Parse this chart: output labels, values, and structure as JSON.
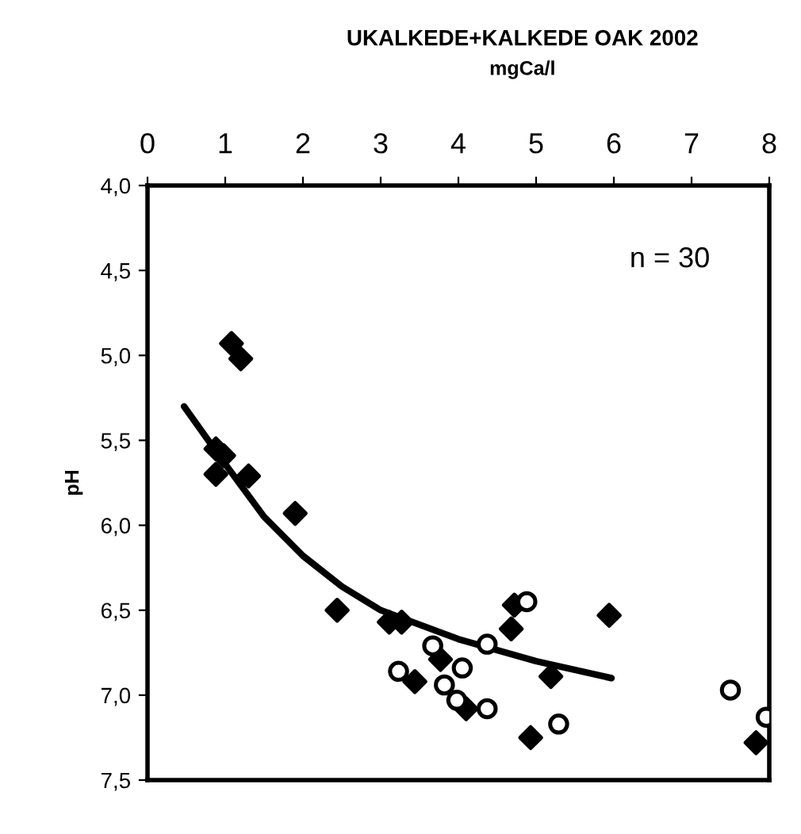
{
  "chart_data": {
    "type": "scatter",
    "title": "UKALKEDE+KALKEDE OAK 2002",
    "xlabel": "mgCa/l",
    "ylabel": "pH",
    "xlim": [
      0,
      8
    ],
    "xticks": [
      0,
      1,
      2,
      3,
      4,
      5,
      6,
      7,
      8
    ],
    "ylim": [
      7.5,
      4.0
    ],
    "yticks": [
      {
        "value": 4.0,
        "label": "4,0"
      },
      {
        "value": 4.5,
        "label": "4,5"
      },
      {
        "value": 5.0,
        "label": "5,0"
      },
      {
        "value": 5.5,
        "label": "5,5"
      },
      {
        "value": 6.0,
        "label": "6,0"
      },
      {
        "value": 6.5,
        "label": "6,5"
      },
      {
        "value": 7.0,
        "label": "7,0"
      },
      {
        "value": 7.5,
        "label": "7,5"
      }
    ],
    "grid": false,
    "legend": false,
    "annotations": [
      "n = 30"
    ],
    "series": [
      {
        "marker": "diamond",
        "color": "#000000",
        "x": [
          1.08,
          1.2,
          0.88,
          0.98,
          0.88,
          1.3,
          1.9,
          2.44,
          3.11,
          3.27,
          3.44,
          3.77,
          4.1,
          4.68,
          4.72,
          5.19,
          4.93,
          5.94,
          7.83
        ],
        "values": [
          4.93,
          5.02,
          5.55,
          5.59,
          5.7,
          5.71,
          5.93,
          6.5,
          6.57,
          6.57,
          6.92,
          6.79,
          7.08,
          6.61,
          6.47,
          6.89,
          7.25,
          6.53,
          7.28
        ]
      },
      {
        "marker": "circle",
        "color": "#ffffff",
        "x": [
          3.23,
          3.67,
          4.05,
          3.82,
          3.98,
          4.37,
          4.37,
          4.88,
          5.29,
          7.5,
          7.96
        ],
        "values": [
          6.86,
          6.71,
          6.84,
          6.94,
          7.03,
          7.08,
          6.7,
          6.45,
          7.17,
          6.97,
          7.13
        ]
      },
      {
        "type": "line",
        "marker": "none",
        "color": "#000000",
        "x": [
          0.47,
          1.0,
          1.5,
          2.0,
          2.5,
          3.0,
          4.0,
          5.0,
          5.97
        ],
        "values": [
          5.3,
          5.64,
          5.95,
          6.18,
          6.36,
          6.5,
          6.67,
          6.8,
          6.9
        ]
      }
    ]
  }
}
